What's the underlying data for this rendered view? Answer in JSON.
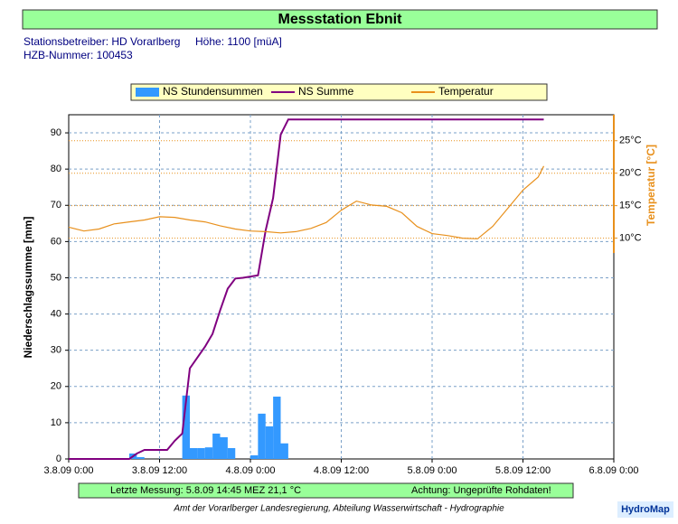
{
  "header": {
    "title": "Messstation Ebnit",
    "operator": "Stationsbetreiber: HD Vorarlberg",
    "altitude": "Höhe: 1100 [müA]",
    "hzb": "HZB-Nummer: 100453"
  },
  "chart_data": {
    "type": "combo",
    "ylabel": "Niederschlagssumme [mm]",
    "y2label": "Temperatur [°C]",
    "xlim": [
      "3.8.09 0:00",
      "6.8.09 0:00"
    ],
    "xticks": [
      "3.8.09 0:00",
      "3.8.09 12:00",
      "4.8.09 0:00",
      "4.8.09 12:00",
      "5.8.09 0:00",
      "5.8.09 12:00",
      "6.8.09 0:00"
    ],
    "ylim": [
      0,
      95
    ],
    "yticks": [
      0,
      10,
      20,
      30,
      40,
      50,
      60,
      70,
      80,
      90
    ],
    "y2lim": [
      -24,
      29
    ],
    "y2ticks": [
      {
        "value": 10,
        "label": "10°C"
      },
      {
        "value": 15,
        "label": "15°C"
      },
      {
        "value": 20,
        "label": "20°C"
      },
      {
        "value": 25,
        "label": "25°C"
      }
    ],
    "grid": true,
    "legend": "top",
    "series": [
      {
        "name": "NS Stundensummen",
        "type": "bar",
        "color": "#3399ff",
        "x": [
          "3.8.09 8:00",
          "3.8.09 9:00",
          "3.8.09 15:00",
          "3.8.09 16:00",
          "3.8.09 17:00",
          "3.8.09 18:00",
          "3.8.09 19:00",
          "3.8.09 20:00",
          "3.8.09 21:00",
          "4.8.09 0:00",
          "4.8.09 1:00",
          "4.8.09 2:00",
          "4.8.09 3:00",
          "4.8.09 4:00"
        ],
        "values": [
          1.5,
          0.5,
          17.5,
          3,
          3,
          3.2,
          7,
          6,
          3,
          1,
          12.5,
          9,
          17.2,
          4.3
        ]
      },
      {
        "name": "NS Summe",
        "type": "line",
        "color": "#800080",
        "x": [
          "3.8.09 0:00",
          "3.8.09 8:00",
          "3.8.09 9:00",
          "3.8.09 10:00",
          "3.8.09 13:00",
          "3.8.09 14:00",
          "3.8.09 15:00",
          "3.8.09 16:00",
          "3.8.09 17:00",
          "3.8.09 18:00",
          "3.8.09 19:00",
          "3.8.09 20:00",
          "3.8.09 21:00",
          "3.8.09 22:00",
          "3.8.09 23:00",
          "4.8.09 1:00",
          "4.8.09 2:00",
          "4.8.09 3:00",
          "4.8.09 4:00",
          "4.8.09 5:00",
          "5.8.09 14:45"
        ],
        "values": [
          0,
          0,
          1.5,
          2.5,
          2.5,
          5,
          7,
          25,
          28,
          31,
          34.5,
          41,
          47,
          49.8,
          50,
          50.7,
          63,
          72,
          89.5,
          93.7,
          93.7
        ]
      },
      {
        "name": "Temperatur",
        "type": "line",
        "axis": "y2",
        "color": "#e8901c",
        "x": [
          "3.8.09 0:00",
          "3.8.09 2:00",
          "3.8.09 4:00",
          "3.8.09 6:00",
          "3.8.09 8:00",
          "3.8.09 10:00",
          "3.8.09 12:00",
          "3.8.09 14:00",
          "3.8.09 16:00",
          "3.8.09 18:00",
          "3.8.09 20:00",
          "3.8.09 22:00",
          "4.8.09 0:00",
          "4.8.09 2:00",
          "4.8.09 4:00",
          "4.8.09 6:00",
          "4.8.09 8:00",
          "4.8.09 10:00",
          "4.8.09 12:00",
          "4.8.09 14:00",
          "4.8.09 16:00",
          "4.8.09 18:00",
          "4.8.09 20:00",
          "4.8.09 22:00",
          "5.8.09 0:00",
          "5.8.09 2:00",
          "5.8.09 4:00",
          "5.8.09 6:00",
          "5.8.09 8:00",
          "5.8.09 10:00",
          "5.8.09 12:00",
          "5.8.09 14:00",
          "5.8.09 14:45"
        ],
        "values": [
          11.7,
          11.1,
          11.4,
          12.2,
          12.5,
          12.8,
          13.3,
          13.2,
          12.8,
          12.5,
          11.9,
          11.4,
          11.1,
          11.0,
          10.8,
          11.0,
          11.5,
          12.4,
          14.3,
          15.7,
          15.1,
          14.9,
          13.9,
          11.8,
          10.7,
          10.4,
          10.0,
          9.9,
          11.8,
          14.6,
          17.4,
          19.4,
          21.1
        ]
      }
    ]
  },
  "status": {
    "last": "Letzte Messung:  5.8.09 14:45 MEZ  21,1 °C",
    "warning": "Achtung: Ungeprüfte Rohdaten!"
  },
  "footer": "Amt der Vorarlberger Landesregierung, Abteilung Wasserwirtschaft - Hydrographie",
  "badge": "HydroMap"
}
